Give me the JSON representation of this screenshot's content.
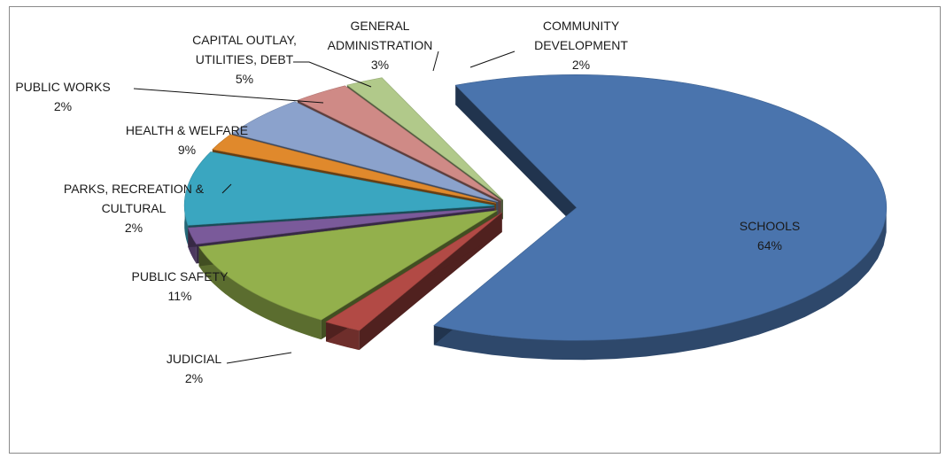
{
  "chart_data": {
    "type": "pie",
    "title": "",
    "style": "3d-exploded",
    "legend": "none",
    "slices": [
      {
        "label": "SCHOOLS",
        "value_label": "64%",
        "value": 64,
        "color": "#4a74ad"
      },
      {
        "label": "JUDICIAL",
        "value_label": "2%",
        "value": 2,
        "color": "#b24a45"
      },
      {
        "label": "PUBLIC SAFETY",
        "value_label": "11%",
        "value": 11,
        "color": "#93b04c"
      },
      {
        "label": "PARKS, RECREATION & CULTURAL",
        "value_label": "2%",
        "value": 2,
        "color": "#7a5a9a"
      },
      {
        "label": "HEALTH & WELFARE",
        "value_label": "9%",
        "value": 9,
        "color": "#3aa6c0"
      },
      {
        "label": "PUBLIC WORKS",
        "value_label": "2%",
        "value": 2,
        "color": "#e0892c"
      },
      {
        "label": "CAPITAL OUTLAY, UTILITIES, DEBT",
        "value_label": "5%",
        "value": 5,
        "color": "#8ba2cc"
      },
      {
        "label": "GENERAL ADMINISTRATION",
        "value_label": "3%",
        "value": 3,
        "color": "#cf8a86"
      },
      {
        "label": "COMMUNITY DEVELOPMENT",
        "value_label": "2%",
        "value": 2,
        "color": "#b1c98a"
      }
    ]
  }
}
